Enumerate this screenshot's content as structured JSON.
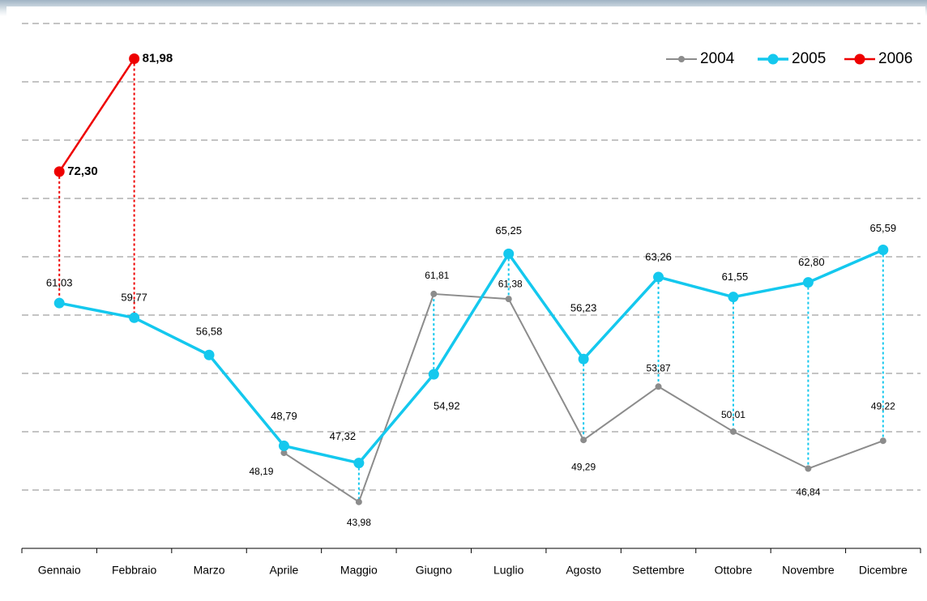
{
  "chart_data": {
    "type": "line",
    "categories": [
      "Gennaio",
      "Febbraio",
      "Marzo",
      "Aprile",
      "Maggio",
      "Giugno",
      "Luglio",
      "Agosto",
      "Settembre",
      "Ottobre",
      "Novembre",
      "Dicembre"
    ],
    "ylim": [
      40,
      85
    ],
    "yticks": [
      45,
      50,
      55,
      60,
      65,
      70,
      75,
      80,
      85
    ],
    "grid": true,
    "legend": "top-right",
    "series": [
      {
        "name": "2004",
        "color": "#8c8c8c",
        "values": [
          null,
          null,
          null,
          48.19,
          43.98,
          61.81,
          61.38,
          49.29,
          53.87,
          50.01,
          46.84,
          49.22
        ],
        "value_labels": [
          null,
          null,
          null,
          "48,19",
          "43,98",
          "61,81",
          "61,38",
          "49,29",
          "53,87",
          "50,01",
          "46,84",
          "49,22"
        ]
      },
      {
        "name": "2005",
        "color": "#14c8ee",
        "values": [
          61.03,
          59.77,
          56.58,
          48.79,
          47.32,
          54.92,
          65.25,
          56.23,
          63.26,
          61.55,
          62.8,
          65.59
        ],
        "value_labels": [
          "61,03",
          "59,77",
          "56,58",
          "48,79",
          "47,32",
          "54,92",
          "65,25",
          "56,23",
          "63,26",
          "61,55",
          "62,80",
          "65,59"
        ]
      },
      {
        "name": "2006",
        "color": "#ee0000",
        "values": [
          72.3,
          81.98,
          null,
          null,
          null,
          null,
          null,
          null,
          null,
          null,
          null,
          null
        ],
        "value_labels": [
          "72,30",
          "81,98",
          null,
          null,
          null,
          null,
          null,
          null,
          null,
          null,
          null,
          null
        ]
      }
    ]
  }
}
